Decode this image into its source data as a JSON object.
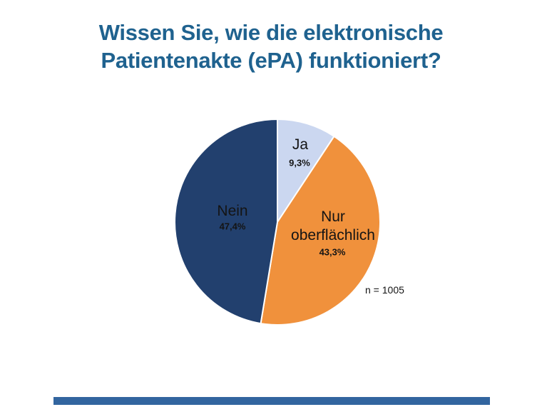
{
  "slide": {
    "title_line1": "Wissen Sie, wie die elektronische",
    "title_line2": "Patientenakte (ePA) funktioniert?",
    "title_color": "#1F628F",
    "footer_bar_color": "#32659F",
    "background_color": "#FFFFFF"
  },
  "chart_data": {
    "type": "pie",
    "title": "Wissen Sie, wie die elektronische Patientenakte (ePA) funktioniert?",
    "categories": [
      "Ja",
      "Nur oberflächlich",
      "Nein"
    ],
    "values": [
      9.3,
      43.3,
      47.4
    ],
    "value_labels": [
      "9,3%",
      "43,3%",
      "47,4%"
    ],
    "colors": [
      "#CBD7F0",
      "#F0913C",
      "#22406E"
    ],
    "slice_ids": [
      "ja",
      "nur-oberflaechlich",
      "nein"
    ],
    "label_color": "#141414",
    "slice_border_color": "#FFFFFF",
    "start_angle_deg": 0,
    "direction": "clockwise",
    "legend": "none",
    "sample_size": "n = 1005"
  }
}
